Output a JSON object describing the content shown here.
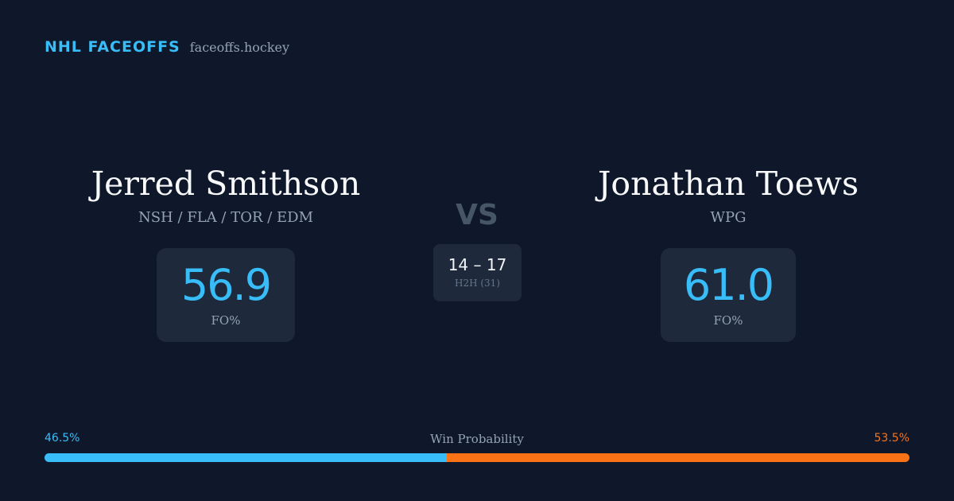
{
  "brand": {
    "name": "NHL FACEOFFS",
    "domain": "faceoffs.hockey"
  },
  "player_left": {
    "name": "Jerred Smithson",
    "teams": "NSH / FLA / TOR / EDM",
    "fo_pct": "56.9",
    "fo_label": "FO%"
  },
  "player_right": {
    "name": "Jonathan Toews",
    "teams": "WPG",
    "fo_pct": "61.0",
    "fo_label": "FO%"
  },
  "versus": {
    "label": "VS",
    "h2h_score": "14 – 17",
    "h2h_label": "H2H (31)"
  },
  "win_probability": {
    "title": "Win Probability",
    "left_label": "46.5%",
    "right_label": "53.5%",
    "left_fraction": 0.465,
    "right_fraction": 0.535,
    "left_color": "#38bdf8",
    "right_color": "#f97316"
  }
}
